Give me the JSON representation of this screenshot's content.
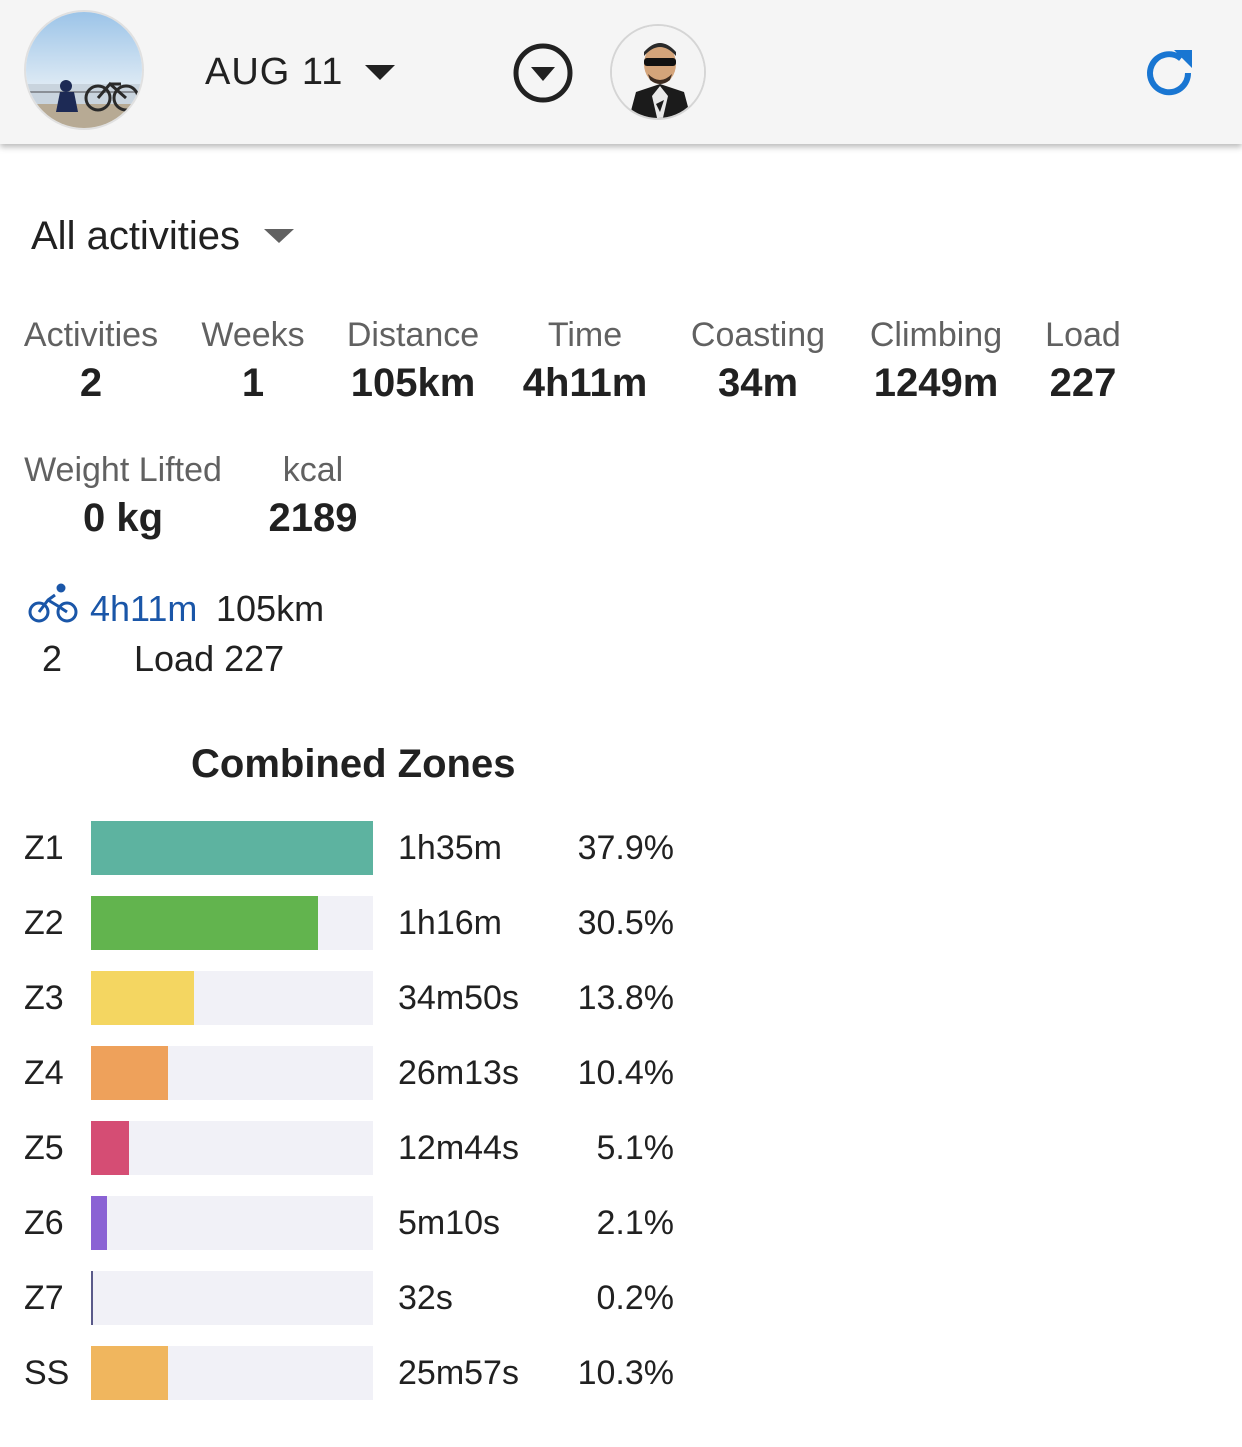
{
  "header": {
    "date": "AUG 11",
    "main_avatar": "cyclist-by-sea-photo",
    "athlete_avatar": "athlete-photo",
    "icons": [
      "chevron-circle-down-icon",
      "refresh-icon"
    ],
    "accent_color": "#1976d2"
  },
  "filter": {
    "label": "All activities"
  },
  "stats_row1": [
    {
      "label": "Activities",
      "value": "2"
    },
    {
      "label": "Weeks",
      "value": "1"
    },
    {
      "label": "Distance",
      "value": "105km"
    },
    {
      "label": "Time",
      "value": "4h11m"
    },
    {
      "label": "Coasting",
      "value": "34m"
    },
    {
      "label": "Climbing",
      "value": "1249m"
    },
    {
      "label": "Load",
      "value": "227"
    }
  ],
  "stats_row2": [
    {
      "label": "Weight Lifted",
      "value": "0 kg"
    },
    {
      "label": "kcal",
      "value": "2189"
    }
  ],
  "sport_summary": {
    "icon": "bicycle-icon",
    "time": "4h11m",
    "distance": "105km",
    "count": "2",
    "load": "Load 227"
  },
  "zones": {
    "title": "Combined Zones",
    "rows": [
      {
        "name": "Z1",
        "time": "1h35m",
        "pct": "37.9%",
        "fraction": 1.0,
        "color": "#5db3a0"
      },
      {
        "name": "Z2",
        "time": "1h16m",
        "pct": "30.5%",
        "fraction": 0.805,
        "color": "#62b44e"
      },
      {
        "name": "Z3",
        "time": "34m50s",
        "pct": "13.8%",
        "fraction": 0.364,
        "color": "#f4d661"
      },
      {
        "name": "Z4",
        "time": "26m13s",
        "pct": "10.4%",
        "fraction": 0.274,
        "color": "#eea15b"
      },
      {
        "name": "Z5",
        "time": "12m44s",
        "pct": "5.1%",
        "fraction": 0.135,
        "color": "#d54d74"
      },
      {
        "name": "Z6",
        "time": "5m10s",
        "pct": "2.1%",
        "fraction": 0.055,
        "color": "#8a62d4"
      },
      {
        "name": "Z7",
        "time": "32s",
        "pct": "0.2%",
        "fraction": 0.006,
        "color": "#5a5a8a"
      },
      {
        "name": "SS",
        "time": "25m57s",
        "pct": "10.3%",
        "fraction": 0.272,
        "color": "#f0b65e"
      }
    ]
  }
}
